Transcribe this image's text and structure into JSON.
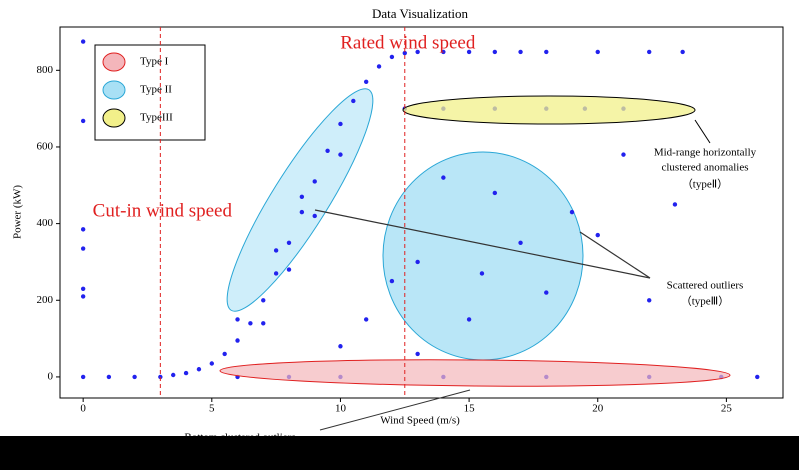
{
  "chart_data": {
    "type": "scatter",
    "title": "Data Visualization",
    "x_label": "Wind Speed (m/s)",
    "y_label": "Power (kW)",
    "xlim": [
      -0.9,
      27.2
    ],
    "ylim": [
      -55,
      913
    ],
    "xticks": [
      0,
      5,
      10,
      15,
      20,
      25
    ],
    "yticks": [
      0,
      200,
      400,
      600,
      800
    ],
    "color": "#2222ee",
    "x": [
      0,
      1,
      2,
      3,
      3.5,
      4,
      4.5,
      5,
      5.5,
      6,
      6.5,
      7,
      7.5,
      8,
      8.5,
      9,
      9.5,
      10,
      10.5,
      11,
      11.5,
      12,
      12.5,
      13,
      14,
      15,
      16,
      17,
      18,
      20,
      22,
      23.3,
      6,
      7,
      8,
      9,
      10,
      7.5,
      8.5,
      0,
      0,
      0,
      0,
      0,
      0,
      6,
      8,
      10,
      14,
      18,
      22,
      24.8,
      26.2,
      12.5,
      14,
      16,
      18,
      19.5,
      21,
      14,
      16,
      13,
      15.5,
      17,
      18,
      15,
      19,
      21,
      20,
      22,
      23,
      11,
      12,
      10,
      13
    ],
    "values": [
      0,
      0,
      0,
      0,
      5,
      10,
      20,
      35,
      60,
      95,
      140,
      200,
      270,
      350,
      430,
      510,
      590,
      660,
      720,
      770,
      810,
      835,
      845,
      848,
      848,
      848,
      848,
      848,
      848,
      848,
      848,
      848,
      150,
      140,
      280,
      420,
      580,
      330,
      470,
      875,
      668,
      385,
      335,
      230,
      210,
      0,
      0,
      0,
      0,
      0,
      0,
      0,
      0,
      700,
      700,
      700,
      700,
      700,
      700,
      520,
      480,
      300,
      270,
      350,
      220,
      150,
      430,
      580,
      370,
      200,
      450,
      150,
      250,
      80,
      60
    ],
    "vlines": [
      {
        "x": 3,
        "label": "Cut-in wind speed"
      },
      {
        "x": 12.5,
        "label": "Rated wind speed"
      }
    ],
    "legend": [
      {
        "name": "Type I",
        "color": "#f4b6bb"
      },
      {
        "name": "Type II",
        "color": "#a8e0f5"
      },
      {
        "name": "TypeIII",
        "color": "#f2f08a"
      }
    ],
    "annotations": [
      "Mid-range horizontally",
      "clustered anomalies",
      "（typeⅡ）",
      "Scattered outliers",
      "（typeⅢ）",
      "Bottom clustered outliers"
    ]
  }
}
